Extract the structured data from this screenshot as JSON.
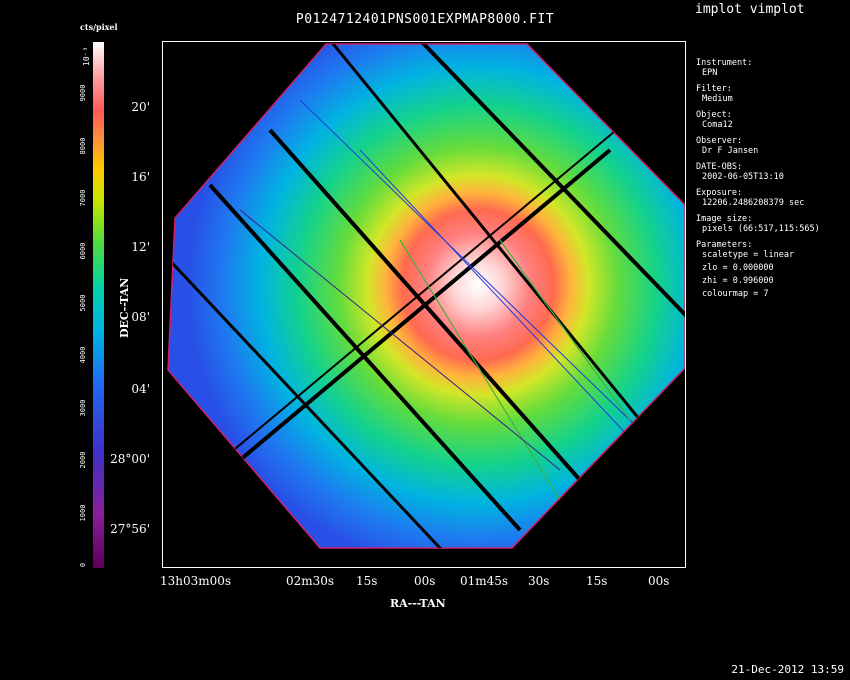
{
  "window": {
    "title": "P0124712401PNS001EXPMAP8000.FIT",
    "program": "implot vimplot",
    "datestamp": "21-Dec-2012 13:59"
  },
  "colorbar": {
    "label": "cts/pixel",
    "exponent": "10⁻³",
    "ticks": [
      "0",
      "1000",
      "2000",
      "3000",
      "4000",
      "5000",
      "6000",
      "7000",
      "8000",
      "9000"
    ]
  },
  "axes": {
    "ylabel": "DEC--TAN",
    "xlabel": "RA---TAN",
    "yticks": [
      "20'",
      "16'",
      "12'",
      "08'",
      "04'",
      "28°00'",
      "27°56'"
    ],
    "xticks": [
      "13h03m00s",
      "02m30s",
      "15s",
      "00s",
      "01m45s",
      "30s",
      "15s",
      "00s"
    ]
  },
  "info": [
    {
      "label": "Instrument:",
      "value": "EPN"
    },
    {
      "label": "Filter:",
      "value": "Medium"
    },
    {
      "label": "Object:",
      "value": "Coma12"
    },
    {
      "label": "Observer:",
      "value": "Dr F Jansen"
    },
    {
      "label": "DATE-OBS:",
      "value": "2002-06-05T13:10"
    },
    {
      "label": "Exposure:",
      "value": "12206.2486208379 sec"
    },
    {
      "label": "Image size:",
      "value": "pixels (66:517,115:565)"
    },
    {
      "label": "Parameters:",
      "value": ""
    }
  ],
  "parameters": [
    "scaletype = linear",
    "zlo = 0.000000",
    "zhi = 0.996000",
    "colourmap = 7"
  ],
  "colors": {
    "background": "#000000",
    "frame": "#ffffff",
    "outline": "#d0206a"
  }
}
